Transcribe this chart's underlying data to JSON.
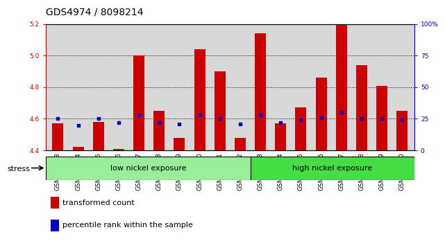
{
  "title": "GDS4974 / 8098214",
  "samples": [
    "GSM992693",
    "GSM992694",
    "GSM992695",
    "GSM992696",
    "GSM992697",
    "GSM992698",
    "GSM992699",
    "GSM992700",
    "GSM992701",
    "GSM992702",
    "GSM992703",
    "GSM992704",
    "GSM992705",
    "GSM992706",
    "GSM992707",
    "GSM992708",
    "GSM992709",
    "GSM992710"
  ],
  "red_values": [
    4.57,
    4.42,
    4.58,
    4.41,
    5.0,
    4.65,
    4.48,
    5.04,
    4.9,
    4.48,
    5.14,
    4.57,
    4.67,
    4.86,
    5.2,
    4.94,
    4.81,
    4.65
  ],
  "blue_percentile": [
    25,
    20,
    25,
    22,
    28,
    22,
    21,
    28,
    25,
    21,
    28,
    22,
    24,
    26,
    30,
    25,
    25,
    24
  ],
  "y_min": 4.4,
  "y_max": 5.2,
  "y_ticks": [
    4.4,
    4.6,
    4.8,
    5.0,
    5.2
  ],
  "y_right_ticks": [
    0,
    25,
    50,
    75,
    100
  ],
  "low_nickel_count": 10,
  "high_nickel_count": 8,
  "bar_color": "#cc0000",
  "blue_color": "#0000cc",
  "low_color": "#99ee99",
  "high_color": "#44dd44",
  "plot_bg": "#d8d8d8",
  "title_fontsize": 10,
  "tick_fontsize": 6.5,
  "annot_fontsize": 8
}
